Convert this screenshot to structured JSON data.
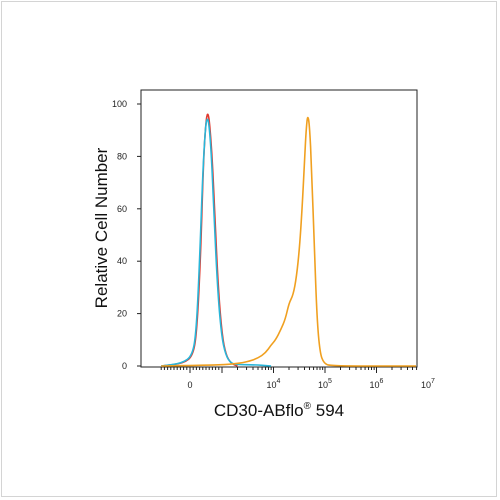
{
  "chart_data": {
    "type": "line",
    "title": "",
    "xlabel": "CD30-ABflo",
    "xlabel_mark": "®",
    "xlabel_suffix": " 594",
    "ylabel": "Relative Cell Number",
    "xscale": "biexponential",
    "ylim": [
      0,
      100
    ],
    "y_ticks": [
      "0",
      "20",
      "40",
      "60",
      "80",
      "100"
    ],
    "x_tick_labels": [
      {
        "value": 0,
        "base": "0",
        "exp": ""
      },
      {
        "value": 10000,
        "base": "10",
        "exp": "4"
      },
      {
        "value": 100000,
        "base": "10",
        "exp": "5"
      },
      {
        "value": 1000000,
        "base": "10",
        "exp": "6"
      },
      {
        "value": 10000000,
        "base": "10",
        "exp": "7"
      }
    ],
    "grid": false,
    "legend": "none",
    "series": [
      {
        "color": "#e03a2f",
        "x": [
          -900,
          -200,
          100,
          220,
          330,
          420,
          500,
          560,
          620,
          700,
          780,
          880,
          1000,
          1200,
          1500,
          2000
        ],
        "y": [
          0,
          1,
          4,
          14,
          42,
          78,
          94,
          97,
          92,
          78,
          56,
          30,
          12,
          4,
          1,
          0
        ]
      },
      {
        "color": "#29b6d9",
        "x": [
          -900,
          -250,
          80,
          200,
          300,
          400,
          480,
          540,
          600,
          680,
          760,
          860,
          980,
          1180,
          1500,
          2000,
          4000,
          9000
        ],
        "y": [
          0,
          1,
          4,
          14,
          40,
          74,
          91,
          95,
          92,
          78,
          55,
          30,
          12,
          4,
          1,
          0.5,
          0.5,
          0
        ]
      },
      {
        "color": "#f0a020",
        "x": [
          -900,
          500,
          1500,
          3000,
          5000,
          7000,
          9000,
          11000,
          14000,
          17000,
          20000,
          24000,
          28000,
          32000,
          36000,
          40000,
          43000,
          46000,
          50000,
          55000,
          62000,
          70000,
          80000,
          95000,
          130000,
          10000000
        ],
        "y": [
          0,
          0.3,
          0.6,
          1.5,
          3,
          5,
          8,
          10,
          14,
          18,
          24,
          27,
          34,
          45,
          60,
          78,
          90,
          96,
          92,
          75,
          45,
          18,
          5,
          1,
          0,
          0
        ]
      }
    ]
  }
}
